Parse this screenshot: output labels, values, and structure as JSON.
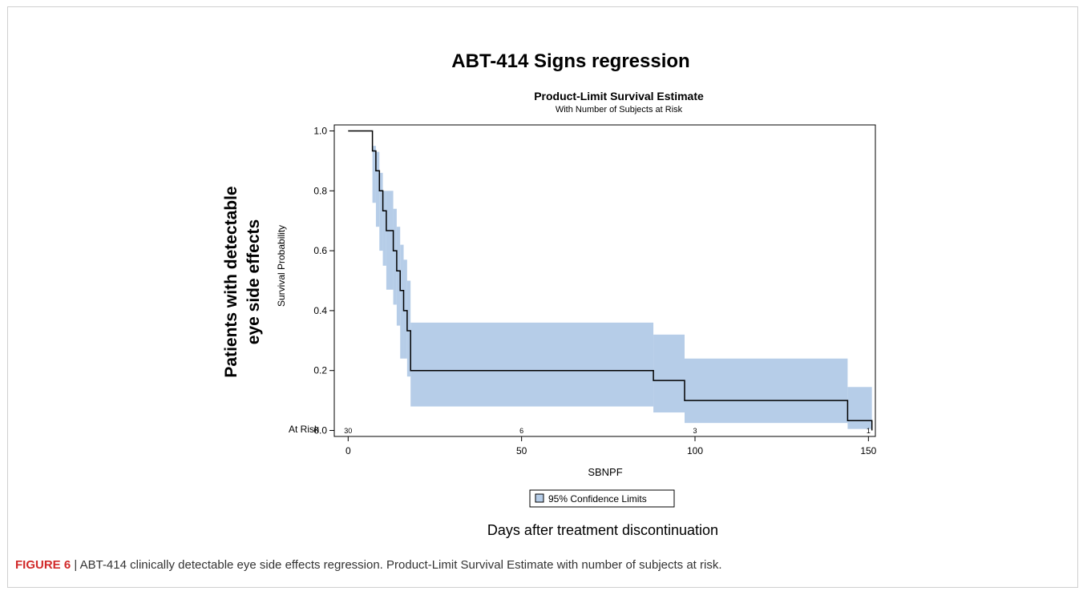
{
  "figure": {
    "heading": "ABT-414 Signs regression",
    "outer_ylabel_line1": "Patients with detectable",
    "outer_ylabel_line2": "eye side effects",
    "outer_xlabel": "Days after treatment discontinuation"
  },
  "caption": {
    "label": "FIGURE 6",
    "separator": " | ",
    "text": "ABT-414 clinically detectable eye side effects regression. Product-Limit Survival Estimate with number of subjects at risk."
  },
  "chart_data": {
    "type": "line",
    "title": "Product-Limit Survival Estimate",
    "subtitle": "With Number of Subjects at Risk",
    "xlabel": "SBNPF",
    "ylabel": "Survival Probability",
    "xlim": [
      -4,
      152
    ],
    "ylim": [
      -0.02,
      1.02
    ],
    "xticks": [
      0,
      50,
      100,
      150
    ],
    "yticks": [
      "0.0",
      "0.2",
      "0.4",
      "0.6",
      "0.8",
      "1.0"
    ],
    "grid": false,
    "legend": {
      "position": "bottom-center",
      "entries": [
        "95% Confidence Limits"
      ]
    },
    "colors": {
      "band": "#b6cde8",
      "line": "#000000"
    },
    "series": [
      {
        "name": "",
        "step_points": [
          [
            0,
            1.0
          ],
          [
            7,
            1.0
          ],
          [
            7,
            0.933
          ],
          [
            8,
            0.933
          ],
          [
            8,
            0.867
          ],
          [
            9,
            0.867
          ],
          [
            9,
            0.8
          ],
          [
            10,
            0.8
          ],
          [
            10,
            0.733
          ],
          [
            11,
            0.733
          ],
          [
            11,
            0.667
          ],
          [
            13,
            0.667
          ],
          [
            13,
            0.6
          ],
          [
            14,
            0.6
          ],
          [
            14,
            0.533
          ],
          [
            15,
            0.533
          ],
          [
            15,
            0.467
          ],
          [
            16,
            0.467
          ],
          [
            16,
            0.4
          ],
          [
            17,
            0.4
          ],
          [
            17,
            0.333
          ],
          [
            18,
            0.333
          ],
          [
            18,
            0.2
          ],
          [
            88,
            0.2
          ],
          [
            88,
            0.167
          ],
          [
            97,
            0.167
          ],
          [
            97,
            0.1
          ],
          [
            144,
            0.1
          ],
          [
            144,
            0.033
          ],
          [
            151,
            0.033
          ],
          [
            151,
            0.0
          ]
        ]
      },
      {
        "name": "95% Confidence Limits",
        "band": [
          [
            7,
            1.0,
            1.0
          ],
          [
            7,
            0.95,
            0.76
          ],
          [
            8,
            0.93,
            0.68
          ],
          [
            9,
            0.86,
            0.6
          ],
          [
            10,
            0.8,
            0.55
          ],
          [
            11,
            0.8,
            0.47
          ],
          [
            13,
            0.74,
            0.42
          ],
          [
            14,
            0.68,
            0.35
          ],
          [
            15,
            0.62,
            0.24
          ],
          [
            16,
            0.57,
            0.24
          ],
          [
            17,
            0.5,
            0.18
          ],
          [
            18,
            0.36,
            0.08
          ],
          [
            88,
            0.32,
            0.06
          ],
          [
            97,
            0.24,
            0.025
          ],
          [
            144,
            0.145,
            0.005
          ],
          [
            151,
            0.145,
            0.005
          ]
        ]
      }
    ],
    "at_risk": {
      "label": "At Risk",
      "points": [
        {
          "x": 0,
          "n": "30"
        },
        {
          "x": 50,
          "n": "6"
        },
        {
          "x": 100,
          "n": "3"
        },
        {
          "x": 150,
          "n": "1"
        }
      ]
    }
  }
}
